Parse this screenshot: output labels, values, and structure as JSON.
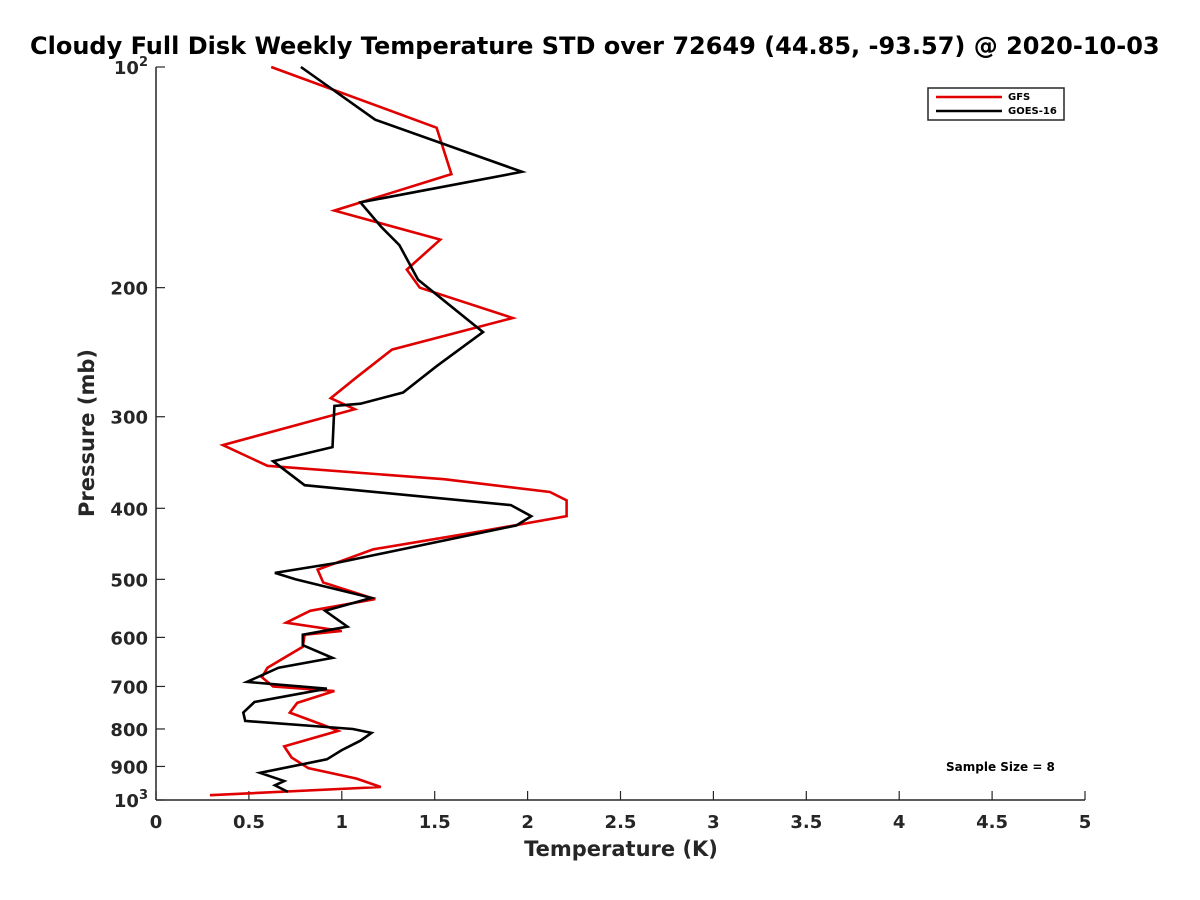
{
  "chart_data": {
    "type": "line",
    "title": "Cloudy Full Disk Weekly Temperature STD over 72649 (44.85, -93.57) @ 2020-10-03",
    "xlabel": "Temperature (K)",
    "ylabel": "Pressure (mb)",
    "xlim": [
      0,
      5
    ],
    "ylim": [
      100,
      1000
    ],
    "yscale": "log",
    "yreversed": true,
    "xticks": [
      0,
      0.5,
      1,
      1.5,
      2,
      2.5,
      3,
      3.5,
      4,
      4.5,
      5
    ],
    "xtick_labels": [
      "0",
      "0.5",
      "1",
      "1.5",
      "2",
      "2.5",
      "3",
      "3.5",
      "4",
      "4.5",
      "5"
    ],
    "yticks": [
      100,
      200,
      300,
      400,
      500,
      600,
      700,
      800,
      900,
      1000
    ],
    "ytick_labels": [
      {
        "base": "10",
        "exp": "2"
      },
      {
        "base": "200",
        "exp": ""
      },
      {
        "base": "300",
        "exp": ""
      },
      {
        "base": "400",
        "exp": ""
      },
      {
        "base": "500",
        "exp": ""
      },
      {
        "base": "600",
        "exp": ""
      },
      {
        "base": "700",
        "exp": ""
      },
      {
        "base": "800",
        "exp": ""
      },
      {
        "base": "900",
        "exp": ""
      },
      {
        "base": "10",
        "exp": "3"
      }
    ],
    "legend_position": "top-right",
    "annotation": "Sample Size = 8",
    "series": [
      {
        "name": "GFS",
        "color": "#e00000",
        "x": [
          0.62,
          1.51,
          1.59,
          0.96,
          1.53,
          1.35,
          1.42,
          1.92,
          1.27,
          1.08,
          0.94,
          1.07,
          0.36,
          0.6,
          1.55,
          2.12,
          2.21,
          2.21,
          1.75,
          1.17,
          0.87,
          0.9,
          1.18,
          0.83,
          0.7,
          1.0,
          0.8,
          0.79,
          0.6,
          0.57,
          0.63,
          0.96,
          0.76,
          0.72,
          0.9,
          0.98,
          0.69,
          0.73,
          0.82,
          1.08,
          1.21,
          0.29
        ],
        "p": [
          100,
          121,
          140,
          157,
          172,
          189,
          200,
          220,
          243,
          265,
          283,
          293,
          328,
          350,
          365,
          380,
          390,
          410,
          430,
          455,
          485,
          505,
          532,
          552,
          573,
          588,
          595,
          618,
          660,
          680,
          700,
          710,
          737,
          760,
          790,
          805,
          845,
          875,
          905,
          935,
          960,
          985
        ]
      },
      {
        "name": "GOES-16",
        "color": "#000000",
        "x": [
          0.78,
          1.18,
          1.97,
          1.1,
          1.21,
          1.31,
          1.41,
          1.76,
          1.51,
          1.33,
          1.1,
          0.96,
          0.95,
          0.63,
          0.8,
          1.91,
          2.02,
          1.94,
          0.97,
          0.64,
          0.75,
          1.16,
          0.91,
          1.03,
          0.79,
          0.79,
          0.95,
          0.66,
          0.49,
          0.92,
          0.53,
          0.47,
          0.48,
          1.06,
          1.16,
          1.1,
          1.0,
          0.92,
          0.56,
          0.69,
          0.64,
          0.71
        ],
        "p": [
          100,
          118,
          139,
          153,
          165,
          175,
          195,
          230,
          256,
          278,
          288,
          290,
          330,
          345,
          372,
          396,
          410,
          422,
          475,
          490,
          500,
          530,
          552,
          580,
          595,
          615,
          640,
          660,
          690,
          705,
          735,
          760,
          780,
          800,
          810,
          830,
          855,
          880,
          918,
          942,
          955,
          975
        ]
      }
    ]
  }
}
